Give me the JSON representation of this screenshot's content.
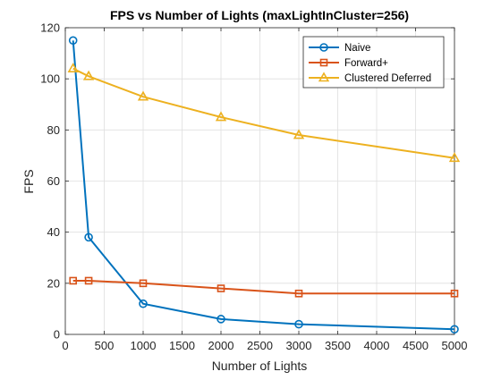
{
  "chart_data": {
    "type": "line",
    "title": "FPS vs Number of Lights (maxLightInCluster=256)",
    "xlabel": "Number of Lights",
    "ylabel": "FPS",
    "xlim": [
      0,
      5000
    ],
    "ylim": [
      0,
      120
    ],
    "xticks": [
      0,
      500,
      1000,
      1500,
      2000,
      2500,
      3000,
      3500,
      4000,
      4500,
      5000
    ],
    "yticks": [
      0,
      20,
      40,
      60,
      80,
      100,
      120
    ],
    "grid": true,
    "legend_position": "top-right",
    "series": [
      {
        "name": "Naive",
        "color": "#0072BD",
        "marker": "circle",
        "x": [
          100,
          300,
          1000,
          2000,
          3000,
          5000
        ],
        "y": [
          115,
          38,
          12,
          6,
          4,
          2
        ]
      },
      {
        "name": "Forward+",
        "color": "#D95319",
        "marker": "square",
        "x": [
          100,
          300,
          1000,
          2000,
          3000,
          5000
        ],
        "y": [
          21,
          21,
          20,
          18,
          16,
          16
        ]
      },
      {
        "name": "Clustered Deferred",
        "color": "#EDB120",
        "marker": "triangle",
        "x": [
          100,
          300,
          1000,
          2000,
          3000,
          5000
        ],
        "y": [
          104,
          101,
          93,
          85,
          78,
          69
        ]
      }
    ]
  }
}
